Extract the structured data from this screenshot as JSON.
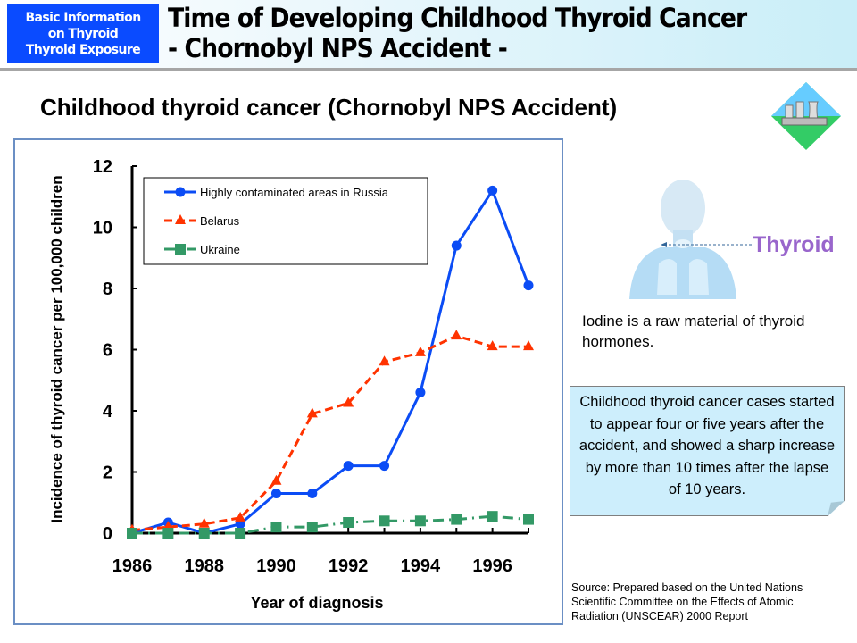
{
  "header": {
    "badge": "Basic Information on Thyroid Thyroid Exposure",
    "badge_lines": [
      "Basic Information",
      "on Thyroid",
      "Thyroid Exposure"
    ],
    "title_lines": [
      "Time of Developing Childhood Thyroid Cancer",
      "- Chornobyl NPS Accident -"
    ],
    "badge_color": "#0a4bff"
  },
  "subtitle": "Childhood thyroid cancer (Chornobyl NPS Accident)",
  "chart_data": {
    "type": "line",
    "xlabel": "Year of diagnosis",
    "ylabel": "Incidence of thyroid cancer per 100,000 children",
    "x": [
      1986,
      1987,
      1988,
      1989,
      1990,
      1991,
      1992,
      1993,
      1994,
      1995,
      1996,
      1997
    ],
    "xlim": [
      1986,
      1997
    ],
    "ylim": [
      0,
      12
    ],
    "xticks": [
      "1986",
      "1988",
      "1990",
      "1992",
      "1994",
      "1996"
    ],
    "yticks": [
      "0",
      "2",
      "4",
      "6",
      "8",
      "10",
      "12"
    ],
    "grid": false,
    "legend": "top-left",
    "series": [
      {
        "name": "Highly contaminated areas in Russia",
        "color": "#0b4cf5",
        "marker": "circle",
        "style": "solid",
        "values": [
          0,
          0.35,
          0,
          0.3,
          1.3,
          1.3,
          2.2,
          2.2,
          4.6,
          9.4,
          11.2,
          8.1
        ]
      },
      {
        "name": "Belarus",
        "color": "#ff3300",
        "marker": "triangle",
        "style": "dashed",
        "values": [
          0.1,
          0.2,
          0.3,
          0.5,
          1.7,
          3.9,
          4.25,
          5.6,
          5.9,
          6.45,
          6.1,
          6.1
        ]
      },
      {
        "name": "Ukraine",
        "color": "#339966",
        "marker": "square",
        "style": "dashdot",
        "values": [
          0,
          0,
          0,
          0,
          0.2,
          0.2,
          0.35,
          0.4,
          0.4,
          0.45,
          0.55,
          0.45
        ]
      }
    ]
  },
  "thyroid_label": "Thyroid",
  "iodine_text": "Iodine is a raw material of thyroid hormones.",
  "callout": "Childhood thyroid cancer cases started to appear four or five years after the accident, and showed a sharp increase by more than 10 times after the lapse of 10 years.",
  "source": "Source: Prepared based on the United Nations Scientific Committee on the Effects of Atomic Radiation (UNSCEAR) 2000 Report"
}
